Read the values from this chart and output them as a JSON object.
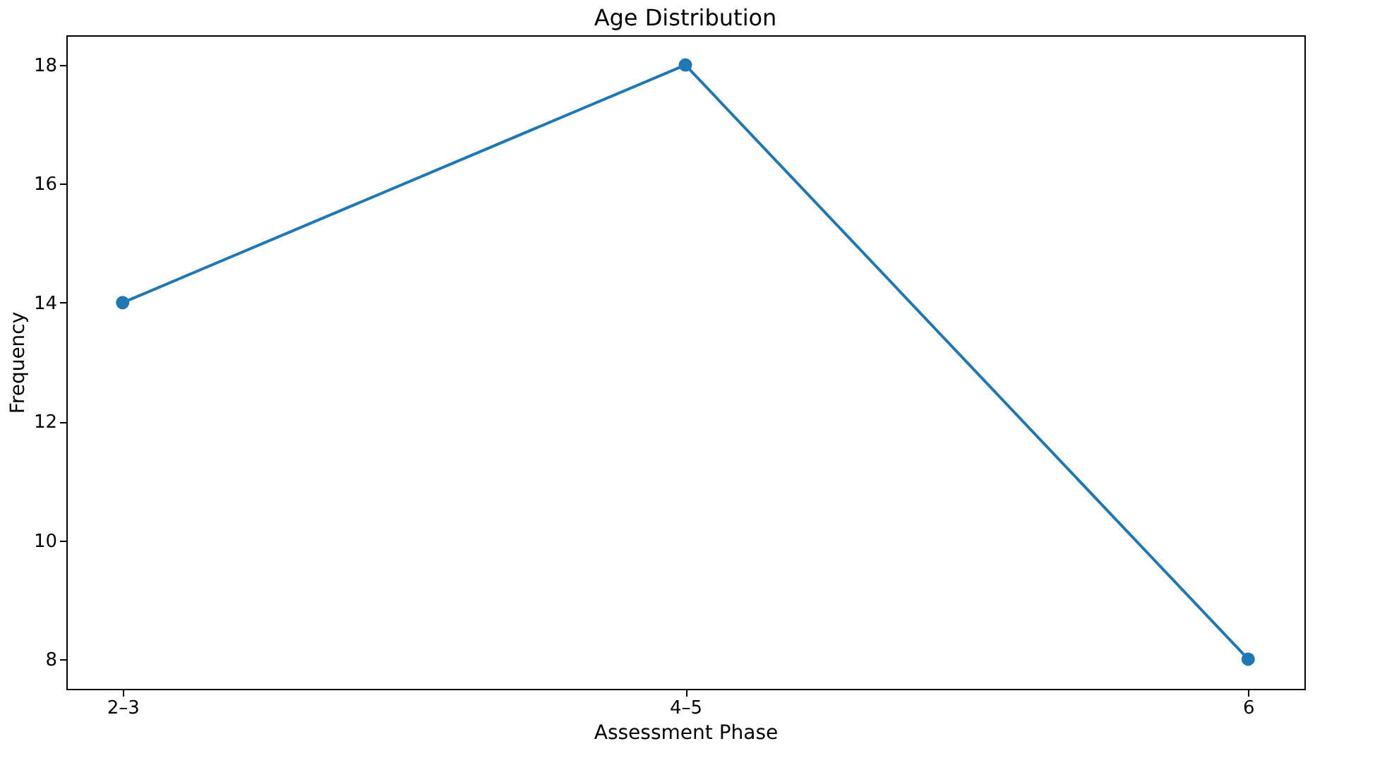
{
  "chart_data": {
    "type": "line",
    "title": "Age Distribution",
    "xlabel": "Assessment Phase",
    "ylabel": "Frequency",
    "categories": [
      "2–3",
      "4–5",
      "6"
    ],
    "series": [
      {
        "color": "#1f77b4",
        "values": [
          14,
          18,
          8
        ]
      }
    ],
    "ylim": [
      7.5,
      18.5
    ],
    "yticks": [
      8,
      10,
      12,
      14,
      16,
      18
    ],
    "grid": false,
    "marker": "circle",
    "line_style": "solid"
  }
}
